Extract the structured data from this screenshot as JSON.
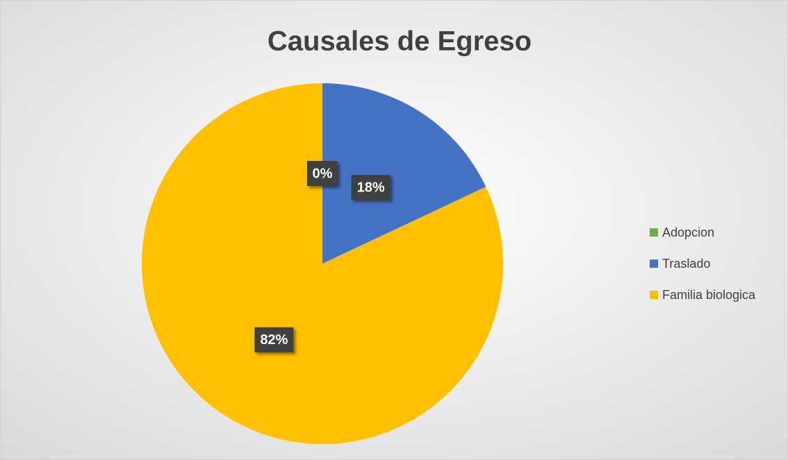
{
  "chart_data": {
    "type": "pie",
    "title": "Causales de Egreso",
    "categories": [
      "Adopcion",
      "Traslado",
      "Familia biologica"
    ],
    "values": [
      0,
      18,
      82
    ],
    "value_labels": [
      "0%",
      "18%",
      "82%"
    ],
    "colors": [
      "#70ad47",
      "#4472c4",
      "#ffc000"
    ],
    "legend": "right"
  }
}
